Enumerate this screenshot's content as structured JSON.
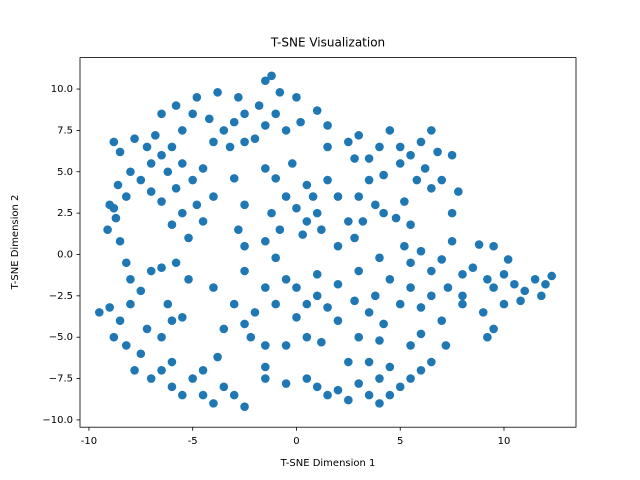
{
  "chart_data": {
    "type": "scatter",
    "title": "T-SNE Visualization",
    "x_label": "T-SNE Dimension 1",
    "y_label": "T-SNE Dimension 2",
    "color": "#1f77b4",
    "xlim": [
      -10.43,
      13.47
    ],
    "ylim": [
      -10.44,
      11.9
    ],
    "xticks": [
      -10,
      -5,
      0,
      5,
      10
    ],
    "yticks": [
      {
        "value": -10,
        "label": "−10.0"
      },
      {
        "value": -7.5,
        "label": "−7.5"
      },
      {
        "value": -5,
        "label": "−5.0"
      },
      {
        "value": -2.5,
        "label": "−2.5"
      },
      {
        "value": 0,
        "label": "0.0"
      },
      {
        "value": 2.5,
        "label": "2.5"
      },
      {
        "value": 5,
        "label": "5.0"
      },
      {
        "value": 7.5,
        "label": "7.5"
      },
      {
        "value": 10,
        "label": "10.0"
      }
    ],
    "x": [
      -8.8,
      -8.5,
      -7.8,
      -7.2,
      -6.8,
      -6.5,
      -7,
      -8,
      -8.6,
      -8.2,
      -9,
      -8.7,
      -9.1,
      -8.5,
      -8.8,
      -7.5,
      -7,
      -6.2,
      -5.8,
      -5.5,
      -5,
      -4.8,
      -5.5,
      -6,
      -6.5,
      -4.5,
      -4,
      -3.5,
      -3,
      -2.5,
      -2,
      -3.2,
      -4.2,
      -5,
      -5.8,
      -4.8,
      -3.8,
      -2.8,
      -1.5,
      -1.2,
      -0.8,
      -1.8,
      -1,
      0,
      0.2,
      -0.5,
      -1.5,
      1,
      1.5,
      -2.5,
      -6.5,
      -5.5,
      -6,
      -3,
      -4,
      -4.5,
      -5.2,
      -1.5,
      -1,
      -1.2,
      -0.5,
      0,
      0.5,
      1,
      0.3,
      -0.8,
      -1.5,
      0.8,
      -0.2,
      0.5,
      1.2,
      -1,
      -2.5,
      -2.8,
      -2.5,
      1.5,
      2,
      2.5,
      2,
      1.5,
      2.5,
      3,
      3.5,
      4,
      4.5,
      5,
      5.5,
      6,
      6.5,
      6.8,
      6.2,
      5,
      4.2,
      3.5,
      3,
      3.8,
      4.2,
      4.8,
      5.2,
      5.5,
      3.2,
      2.8,
      6.5,
      7,
      7.5,
      7.8,
      7.5,
      5.8,
      2.8,
      5.2,
      5.5,
      6,
      6.5,
      7,
      7.5,
      8,
      8.5,
      8.8,
      9.2,
      9.5,
      10,
      10.5,
      11,
      11.5,
      12,
      12.3,
      11.8,
      10.8,
      10,
      9.5,
      9.2,
      9,
      8,
      7.3,
      6.5,
      6,
      5.5,
      4.5,
      4,
      3.8,
      9.5,
      10.2,
      8,
      -1.5,
      -1,
      0,
      0.5,
      1,
      1.5,
      0,
      -0.5,
      1,
      2,
      -2,
      -2.5,
      -2.2,
      -3,
      -3.5,
      -4,
      -2.5,
      -1.5,
      -1.5,
      -0.5,
      0.5,
      1.2,
      -9.5,
      -9,
      -8.5,
      -8.8,
      -8.2,
      -7.5,
      -8,
      -7.5,
      -7,
      -8,
      -8.2,
      -7.2,
      -6.5,
      -6,
      -5.5,
      -6.2,
      -7,
      -6.5,
      -6,
      -5.5,
      -6,
      -7.8,
      -5.2,
      -5.8,
      -6.5,
      -5,
      -4.5,
      -4,
      -3.5,
      -3,
      -2.5,
      -4.5,
      -3.8,
      -1.5,
      -0.5,
      0.5,
      1,
      1.5,
      2,
      2.5,
      3,
      3.5,
      4,
      4.5,
      5,
      5.5,
      6,
      6.5,
      7.2,
      3.5,
      4,
      4.5,
      3,
      5.5,
      4,
      2.5,
      3,
      3.5,
      4.2,
      5,
      6,
      2.8,
      7,
      2
    ],
    "y": [
      6.8,
      6.2,
      7,
      6.5,
      7.2,
      6,
      5.5,
      5,
      4.2,
      3.5,
      3,
      2.2,
      1.5,
      0.8,
      2.8,
      4.5,
      3.8,
      5,
      4,
      5.5,
      4.5,
      3,
      2.5,
      1.8,
      3.2,
      5.2,
      6.8,
      7.5,
      8,
      8.5,
      7,
      6.5,
      8.2,
      8.5,
      9,
      9.5,
      9.8,
      9.5,
      10.5,
      10.8,
      9.8,
      9,
      8.5,
      9.5,
      8,
      7.5,
      7.8,
      8.7,
      7.8,
      6.8,
      8.5,
      7.5,
      6.5,
      4.6,
      3.5,
      2,
      1,
      5.2,
      4.6,
      2.5,
      3.5,
      2.8,
      2,
      2.5,
      1.2,
      1.5,
      0.8,
      3.5,
      5.5,
      4.2,
      1.5,
      -0.2,
      3,
      1.5,
      0.5,
      4.5,
      3.5,
      2,
      0.5,
      6.5,
      6.8,
      7.2,
      5.8,
      6.5,
      7.5,
      6.5,
      6,
      6.8,
      7.5,
      6.2,
      5.2,
      5.5,
      4.8,
      4.5,
      3.5,
      3,
      2.5,
      2.2,
      3.2,
      1.8,
      2,
      1,
      4,
      4.5,
      6,
      3.8,
      2.5,
      4.5,
      5.8,
      0.5,
      -0.5,
      0.2,
      -1,
      -0.3,
      0.8,
      -1.2,
      -0.8,
      0.6,
      -1.5,
      -2,
      -1.2,
      -1.8,
      -2.2,
      -1.5,
      -1.8,
      -1.3,
      -2.5,
      -2.8,
      -3,
      -4.5,
      -5,
      -3.5,
      -2.5,
      -2,
      -2.5,
      -3.2,
      -2,
      -1.5,
      -0.2,
      -2.5,
      0.5,
      -0.3,
      -3,
      -2,
      -3,
      -2,
      -3,
      -2.5,
      -3.2,
      -3.8,
      -1.5,
      -1.2,
      -1.8,
      -3.5,
      -4.2,
      -5,
      -3,
      -4.5,
      -2,
      -1,
      -5.5,
      -6.8,
      -5.5,
      -5,
      -5.3,
      -3.5,
      -3.2,
      -4,
      -5,
      -5.5,
      -6,
      -3,
      -2.2,
      -1,
      -1.5,
      -0.5,
      -4.5,
      -5,
      -4,
      -3.8,
      -3,
      -7.5,
      -7,
      -8,
      -8.5,
      -6.5,
      -7,
      -1.5,
      -0.5,
      -0.8,
      -7.5,
      -8.5,
      -9,
      -8,
      -8.5,
      -9.2,
      -7,
      -6.2,
      -7.5,
      -7.8,
      -7.5,
      -8,
      -8.5,
      -8.2,
      -8.8,
      -7.8,
      -8.5,
      -9,
      -8.5,
      -8,
      -7.5,
      -7,
      -6.5,
      -5.5,
      -6.5,
      -5.2,
      -6.8,
      -5,
      -5.5,
      -7.5,
      -6.5,
      -1,
      -3.5,
      -4.2,
      -3,
      -4.8,
      -2.8,
      -4,
      -4
    ]
  }
}
